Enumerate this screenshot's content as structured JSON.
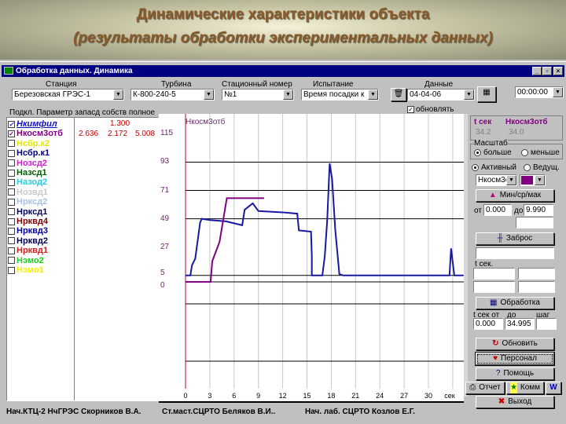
{
  "slide": {
    "title": "Динамические характеристики объекта",
    "subtitle": "(результаты обработки экспериментальных данных)"
  },
  "window": {
    "title": "Обработка данных. Динамика",
    "controls": [
      "_",
      "▫",
      "×"
    ]
  },
  "toolbar": {
    "station_label": "Станция",
    "station_value": "Березовская ГРЭС-1",
    "turbine_label": "Турбина",
    "turbine_value": "К-800-240-5",
    "number_label": "Стационный номер",
    "number_value": "№1",
    "test_label": "Испытание",
    "test_value": "Время посадки к",
    "data_label": "Данные",
    "data_value": "04-04-06",
    "time_value": "00:00:00",
    "update_label": "обновлять",
    "update_checked": true
  },
  "columns": {
    "connect": "Подкл.",
    "param": "Параметр",
    "reserve": "запасд",
    "own": "собств",
    "full": "полное"
  },
  "params": [
    {
      "name": "Нкимфил",
      "color": "#1010c0",
      "checked": true,
      "italic": true
    },
    {
      "name": "Нкосм3отб",
      "color": "#800080",
      "checked": true
    },
    {
      "name": "Нсбр.к2",
      "color": "#e8e800",
      "checked": false
    },
    {
      "name": "Нсбр.к1",
      "color": "#000080",
      "checked": false
    },
    {
      "name": "Нозсд2",
      "color": "#d020d0",
      "checked": false
    },
    {
      "name": "Назсд1",
      "color": "#006000",
      "checked": false
    },
    {
      "name": "Назод2",
      "color": "#20d0e0",
      "checked": false
    },
    {
      "name": "Нозвд1",
      "color": "#c8c8c8",
      "checked": false
    },
    {
      "name": "Нркcд2",
      "color": "#a8c0e0",
      "checked": false
    },
    {
      "name": "Нркcд1",
      "color": "#000060",
      "checked": false
    },
    {
      "name": "Нрквд4",
      "color": "#800000",
      "checked": false
    },
    {
      "name": "Нрквд3",
      "color": "#0000a0",
      "checked": false
    },
    {
      "name": "Нрквд2",
      "color": "#000050",
      "checked": false
    },
    {
      "name": "Нрквд1",
      "color": "#d02020",
      "checked": false
    },
    {
      "name": "Нэмо2",
      "color": "#20d020",
      "checked": false
    },
    {
      "name": "Нэмо1",
      "color": "#f0f000",
      "checked": false
    }
  ],
  "values": {
    "row1": {
      "own": "1.300"
    },
    "row2": {
      "reserve": "2.636",
      "own": "2.172",
      "full": "5.008"
    }
  },
  "chart_data": {
    "type": "line",
    "title": "Нкосм3отб",
    "xlabel": "сек",
    "xlim": [
      0,
      34
    ],
    "x_ticks": [
      "0",
      "3",
      "6",
      "9",
      "12",
      "15",
      "18",
      "21",
      "24",
      "27",
      "30"
    ],
    "y_ticks": [
      "115",
      "93",
      "71",
      "49",
      "27",
      "5",
      "0"
    ],
    "y_gridlines": [
      93,
      71,
      49,
      5,
      0
    ],
    "series": [
      {
        "color": "#1818a0",
        "points": [
          [
            0,
            5
          ],
          [
            0.6,
            5
          ],
          [
            0.8,
            13
          ],
          [
            1.2,
            18
          ],
          [
            1.5,
            32
          ],
          [
            1.8,
            46
          ],
          [
            2,
            49
          ],
          [
            3,
            48
          ],
          [
            5,
            47
          ],
          [
            7,
            44
          ],
          [
            7.3,
            56
          ],
          [
            8.3,
            61
          ],
          [
            9,
            55
          ],
          [
            12,
            54
          ],
          [
            13.8,
            53
          ],
          [
            14,
            40
          ],
          [
            15.5,
            39
          ],
          [
            15.6,
            20
          ],
          [
            15.6,
            5
          ],
          [
            16.9,
            5
          ],
          [
            17.2,
            20
          ],
          [
            17.5,
            48
          ],
          [
            17.8,
            92
          ],
          [
            18.1,
            80
          ],
          [
            18.5,
            40
          ],
          [
            19,
            6
          ],
          [
            19.5,
            5
          ],
          [
            32.6,
            5
          ],
          [
            32.8,
            26
          ],
          [
            33.1,
            10
          ],
          [
            33.2,
            5
          ],
          [
            34.3,
            5
          ]
        ]
      },
      {
        "color": "#800080",
        "points": [
          [
            0,
            0
          ],
          [
            3.1,
            0
          ],
          [
            3.3,
            16
          ],
          [
            4.2,
            31
          ],
          [
            5.1,
            65
          ],
          [
            9.7,
            65
          ]
        ]
      }
    ]
  },
  "side": {
    "t_header": "t сек",
    "p_header": "Нкосм3отб",
    "t_value": "34.2",
    "p_value": "34.0",
    "scale_label": "Масштаб",
    "more": "больше",
    "less": "меньше",
    "active": "Активный",
    "lead": "Ведущ.",
    "param_combo": "Нкосм3отб",
    "param_color": "#800080",
    "minmax_btn": "Мин/ср/мак",
    "from_label": "от",
    "from_value": "0.000",
    "to_label": "до",
    "to_value": "9.990",
    "overshoot_btn": "Заброс",
    "tsec_label": "t сек.",
    "process_btn": "Обработка",
    "range_from_label": "t сек от",
    "range_to_label": "до",
    "step_label": "шаг",
    "range_from": "0.000",
    "range_to": "34.995",
    "refresh_btn": "Обновить",
    "staff_btn": "Персонал",
    "help_btn": "Помощь",
    "report_btn": "Отчет",
    "comm_btn": "Комм",
    "word_btn": "W",
    "exit_btn": "Выход"
  },
  "footer": [
    "Нач.КТЦ-2 НчГРЭС  Скорников В.А.",
    "Ст.маст.СЦРТО  Беляков В.И..",
    "Нач. лаб. СЦРТО  Козлов Е.Г."
  ]
}
